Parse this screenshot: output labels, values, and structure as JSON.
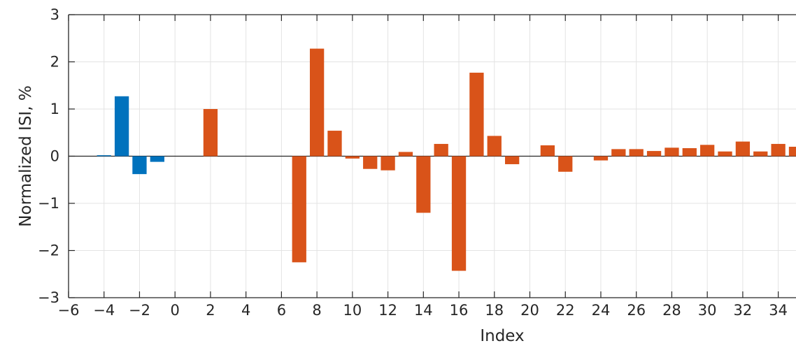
{
  "chart_data": {
    "type": "bar",
    "xlabel": "Index",
    "ylabel": "Normalized ISI, %",
    "xlim": [
      -6,
      35
    ],
    "ylim": [
      -3,
      3
    ],
    "x_ticks": [
      -6,
      -4,
      -2,
      0,
      2,
      4,
      6,
      8,
      10,
      12,
      14,
      16,
      18,
      20,
      22,
      24,
      26,
      28,
      30,
      32,
      34
    ],
    "y_ticks": [
      -3,
      -2,
      -1,
      0,
      1,
      2,
      3
    ],
    "grid": true,
    "series": [
      {
        "color": "#0072BD",
        "x": [
          -4,
          -3,
          -2,
          -1
        ],
        "values": [
          0.02,
          1.27,
          -0.38,
          -0.12
        ]
      },
      {
        "color": "#D95319",
        "x": [
          2,
          7,
          8,
          9,
          10,
          11,
          12,
          13,
          14,
          15,
          16,
          17,
          18,
          19,
          21,
          22,
          24,
          25,
          26,
          27,
          28,
          29,
          30,
          31,
          32,
          33,
          34,
          35
        ],
        "values": [
          1.0,
          -2.25,
          2.28,
          0.54,
          -0.05,
          -0.27,
          -0.3,
          0.09,
          -1.2,
          0.26,
          -2.43,
          1.77,
          0.43,
          -0.17,
          0.23,
          -0.33,
          -0.09,
          0.15,
          0.15,
          0.11,
          0.18,
          0.17,
          0.24,
          0.1,
          0.31,
          0.1,
          0.26,
          0.2
        ]
      }
    ]
  }
}
